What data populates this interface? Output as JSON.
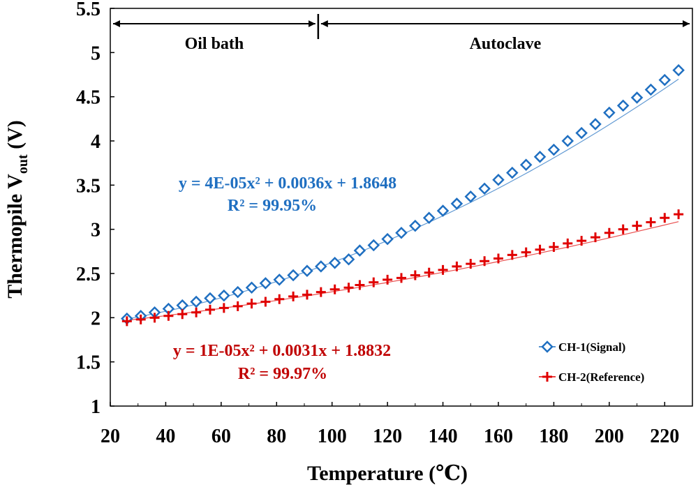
{
  "chart_data": {
    "type": "scatter",
    "xlabel": "Temperature (℃)",
    "ylabel_main": "Thermopile V",
    "ylabel_sub": "out",
    "ylabel_unit": " (V)",
    "xlim": [
      20,
      230
    ],
    "ylim": [
      1,
      5.5
    ],
    "xticks": [
      "20",
      "40",
      "60",
      "80",
      "100",
      "120",
      "140",
      "160",
      "180",
      "200",
      "220"
    ],
    "xtick_values": [
      20,
      40,
      60,
      80,
      100,
      120,
      140,
      160,
      180,
      200,
      220
    ],
    "yticks": [
      "1",
      "1.5",
      "2",
      "2.5",
      "3",
      "3.5",
      "4",
      "4.5",
      "5",
      "5.5"
    ],
    "ytick_values": [
      1,
      1.5,
      2,
      2.5,
      3,
      3.5,
      4,
      4.5,
      5,
      5.5
    ],
    "regions": [
      {
        "label": "Oil bath",
        "from": 20,
        "to": 95
      },
      {
        "label": "Autoclave",
        "from": 95,
        "to": 230
      }
    ],
    "series": [
      {
        "name": "CH-1(Signal)",
        "marker": "diamond",
        "color": "#1f6fc1",
        "x": [
          26,
          31,
          36,
          41,
          46,
          51,
          56,
          61,
          66,
          71,
          76,
          81,
          86,
          91,
          96,
          101,
          106,
          110,
          115,
          120,
          125,
          130,
          135,
          140,
          145,
          150,
          155,
          160,
          165,
          170,
          175,
          180,
          185,
          190,
          195,
          200,
          205,
          210,
          215,
          220,
          225
        ],
        "y": [
          1.99,
          2.02,
          2.06,
          2.1,
          2.14,
          2.18,
          2.22,
          2.25,
          2.29,
          2.34,
          2.39,
          2.43,
          2.48,
          2.53,
          2.58,
          2.62,
          2.66,
          2.76,
          2.82,
          2.89,
          2.96,
          3.04,
          3.13,
          3.21,
          3.29,
          3.37,
          3.46,
          3.56,
          3.64,
          3.73,
          3.82,
          3.9,
          4.0,
          4.09,
          4.19,
          4.32,
          4.4,
          4.49,
          4.58,
          4.69,
          4.8
        ]
      },
      {
        "name": "CH-2(Reference)",
        "marker": "plus",
        "color": "#e00000",
        "x": [
          26,
          31,
          36,
          41,
          46,
          51,
          56,
          61,
          66,
          71,
          76,
          81,
          86,
          91,
          96,
          101,
          106,
          110,
          115,
          120,
          125,
          130,
          135,
          140,
          145,
          150,
          155,
          160,
          165,
          170,
          175,
          180,
          185,
          190,
          195,
          200,
          205,
          210,
          215,
          220,
          225
        ],
        "y": [
          1.96,
          1.98,
          2.0,
          2.02,
          2.04,
          2.06,
          2.09,
          2.11,
          2.13,
          2.16,
          2.18,
          2.21,
          2.24,
          2.26,
          2.29,
          2.32,
          2.34,
          2.37,
          2.4,
          2.43,
          2.45,
          2.48,
          2.51,
          2.54,
          2.58,
          2.61,
          2.64,
          2.67,
          2.71,
          2.74,
          2.77,
          2.8,
          2.84,
          2.87,
          2.91,
          2.96,
          3.0,
          3.04,
          3.08,
          3.13,
          3.17
        ]
      }
    ],
    "fits": [
      {
        "equation": "y = 4E-05x² + 0.0036x + 1.8648",
        "r2": "R² = 99.95%",
        "a": 4e-05,
        "b": 0.0036,
        "c": 1.8648,
        "color": "#1f6fc1"
      },
      {
        "equation": "y = 1E-05x² + 0.0031x + 1.8832",
        "r2": "R² = 99.97%",
        "a": 1e-05,
        "b": 0.0031,
        "c": 1.8832,
        "color": "#c00000"
      }
    ],
    "legend": {
      "position": "bottom-right",
      "entries": [
        "CH-1(Signal)",
        "CH-2(Reference)"
      ]
    }
  }
}
